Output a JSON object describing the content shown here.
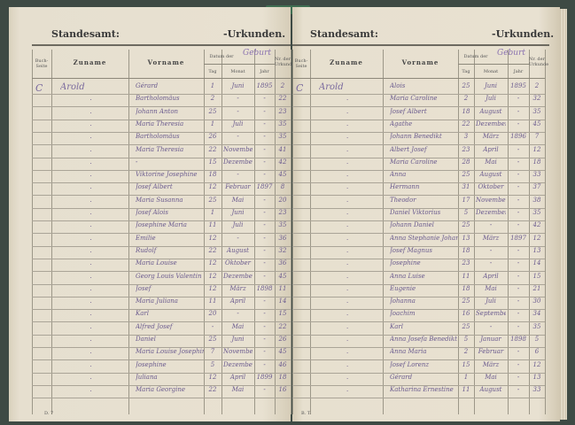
{
  "header": {
    "left_title": "Standesamt:",
    "right_title": "-Urkunden.",
    "birth_label": "Geburt"
  },
  "columns": {
    "book_page": "Buch-Seite",
    "surname": "Zuname",
    "given": "Vorname",
    "date_of": "Datum der",
    "day": "Tag",
    "month": "Monat",
    "year": "Jahr",
    "record_no": "Nr. der Urkunde"
  },
  "left_page": {
    "letter": "C",
    "surname": "Arold",
    "footer": "D. 7",
    "rows": [
      {
        "given": "Gérard",
        "day": "1",
        "month": "Juni",
        "year": "1895",
        "nr": "2"
      },
      {
        "given": "Bartholomäus",
        "day": "2",
        "month": "-",
        "year": "-",
        "nr": "22"
      },
      {
        "given": "Johann Anton",
        "day": "25",
        "month": "-",
        "year": "-",
        "nr": "23"
      },
      {
        "given": "Maria Theresia",
        "day": "1",
        "month": "Juli",
        "year": "-",
        "nr": "35"
      },
      {
        "given": "Bartholomäus",
        "day": "26",
        "month": "-",
        "year": "-",
        "nr": "35"
      },
      {
        "given": "Maria Theresia",
        "day": "22",
        "month": "November",
        "year": "-",
        "nr": "41"
      },
      {
        "given": "-",
        "day": "15",
        "month": "Dezember",
        "year": "-",
        "nr": "42"
      },
      {
        "given": "Viktorine Josephine",
        "day": "18",
        "month": "-",
        "year": "-",
        "nr": "45"
      },
      {
        "given": "Josef Albert",
        "day": "12",
        "month": "Februar",
        "year": "1897",
        "nr": "8"
      },
      {
        "given": "Maria Susanna",
        "day": "25",
        "month": "Mai",
        "year": "-",
        "nr": "20"
      },
      {
        "given": "Josef Alois",
        "day": "1",
        "month": "Juni",
        "year": "-",
        "nr": "23"
      },
      {
        "given": "Josephine Maria",
        "day": "11",
        "month": "Juli",
        "year": "-",
        "nr": "35"
      },
      {
        "given": "Emilie",
        "day": "12",
        "month": "-",
        "year": "-",
        "nr": "36"
      },
      {
        "given": "Rudolf",
        "day": "22",
        "month": "August",
        "year": "-",
        "nr": "32"
      },
      {
        "given": "Maria Louise",
        "day": "12",
        "month": "Oktober",
        "year": "-",
        "nr": "36"
      },
      {
        "given": "Georg Louis Valentin",
        "day": "12",
        "month": "Dezember",
        "year": "-",
        "nr": "45"
      },
      {
        "given": "Josef",
        "day": "12",
        "month": "März",
        "year": "1898",
        "nr": "11"
      },
      {
        "given": "Maria Juliana",
        "day": "11",
        "month": "April",
        "year": "-",
        "nr": "14"
      },
      {
        "given": "Karl",
        "day": "20",
        "month": "-",
        "year": "-",
        "nr": "15"
      },
      {
        "given": "Alfred Josef",
        "day": "-",
        "month": "Mai",
        "year": "-",
        "nr": "22"
      },
      {
        "given": "Daniel",
        "day": "25",
        "month": "Juni",
        "year": "-",
        "nr": "26"
      },
      {
        "given": "Maria Louise Josephine",
        "day": "7",
        "month": "November",
        "year": "-",
        "nr": "45"
      },
      {
        "given": "Josephine",
        "day": "5",
        "month": "Dezember",
        "year": "-",
        "nr": "46"
      },
      {
        "given": "Juliana",
        "day": "12",
        "month": "April",
        "year": "1899",
        "nr": "18"
      },
      {
        "given": "Maria Georgine",
        "day": "22",
        "month": "Mai",
        "year": "-",
        "nr": "16"
      }
    ]
  },
  "right_page": {
    "letter": "C",
    "surname": "Arold",
    "footer": "B. T.",
    "rows": [
      {
        "given": "Alois",
        "day": "25",
        "month": "Juni",
        "year": "1895",
        "nr": "2"
      },
      {
        "given": "Maria Caroline",
        "day": "2",
        "month": "Juli",
        "year": "-",
        "nr": "32"
      },
      {
        "given": "Josef Albert",
        "day": "18",
        "month": "August",
        "year": "-",
        "nr": "35"
      },
      {
        "given": "Agathe",
        "day": "22",
        "month": "Dezember",
        "year": "-",
        "nr": "45"
      },
      {
        "given": "Johann Benedikt",
        "day": "3",
        "month": "März",
        "year": "1896",
        "nr": "7"
      },
      {
        "given": "Albert Josef",
        "day": "23",
        "month": "April",
        "year": "-",
        "nr": "12"
      },
      {
        "given": "Maria Caroline",
        "day": "28",
        "month": "Mai",
        "year": "-",
        "nr": "18"
      },
      {
        "given": "Anna",
        "day": "25",
        "month": "August",
        "year": "-",
        "nr": "33"
      },
      {
        "given": "Hermann",
        "day": "31",
        "month": "Oktober",
        "year": "-",
        "nr": "37"
      },
      {
        "given": "Theodor",
        "day": "17",
        "month": "November",
        "year": "-",
        "nr": "38"
      },
      {
        "given": "Daniel Viktorius",
        "day": "5",
        "month": "Dezember",
        "year": "-",
        "nr": "35"
      },
      {
        "given": "Johann Daniel",
        "day": "25",
        "month": "-",
        "year": "-",
        "nr": "42"
      },
      {
        "given": "Anna Stephanie Johanna",
        "day": "13",
        "month": "März",
        "year": "1897",
        "nr": "12"
      },
      {
        "given": "Josef Magnus",
        "day": "18",
        "month": "-",
        "year": "-",
        "nr": "13"
      },
      {
        "given": "Josephine",
        "day": "23",
        "month": "-",
        "year": "-",
        "nr": "14"
      },
      {
        "given": "Anna Luise",
        "day": "11",
        "month": "April",
        "year": "-",
        "nr": "15"
      },
      {
        "given": "Eugenie",
        "day": "18",
        "month": "Mai",
        "year": "-",
        "nr": "21"
      },
      {
        "given": "Johanna",
        "day": "25",
        "month": "Juli",
        "year": "-",
        "nr": "30"
      },
      {
        "given": "Joachim",
        "day": "16",
        "month": "September",
        "year": "-",
        "nr": "34"
      },
      {
        "given": "Karl",
        "day": "25",
        "month": "-",
        "year": "-",
        "nr": "35"
      },
      {
        "given": "Anna Josefa Benedikt",
        "day": "5",
        "month": "Januar",
        "year": "1898",
        "nr": "5"
      },
      {
        "given": "Anna Maria",
        "day": "2",
        "month": "Februar",
        "year": "-",
        "nr": "6"
      },
      {
        "given": "Josef Lorenz",
        "day": "15",
        "month": "März",
        "year": "-",
        "nr": "12"
      },
      {
        "given": "Gérard",
        "day": "1",
        "month": "Mai",
        "year": "-",
        "nr": "13"
      },
      {
        "given": "Katharina Ernestine",
        "day": "11",
        "month": "August",
        "year": "-",
        "nr": "33"
      }
    ]
  }
}
